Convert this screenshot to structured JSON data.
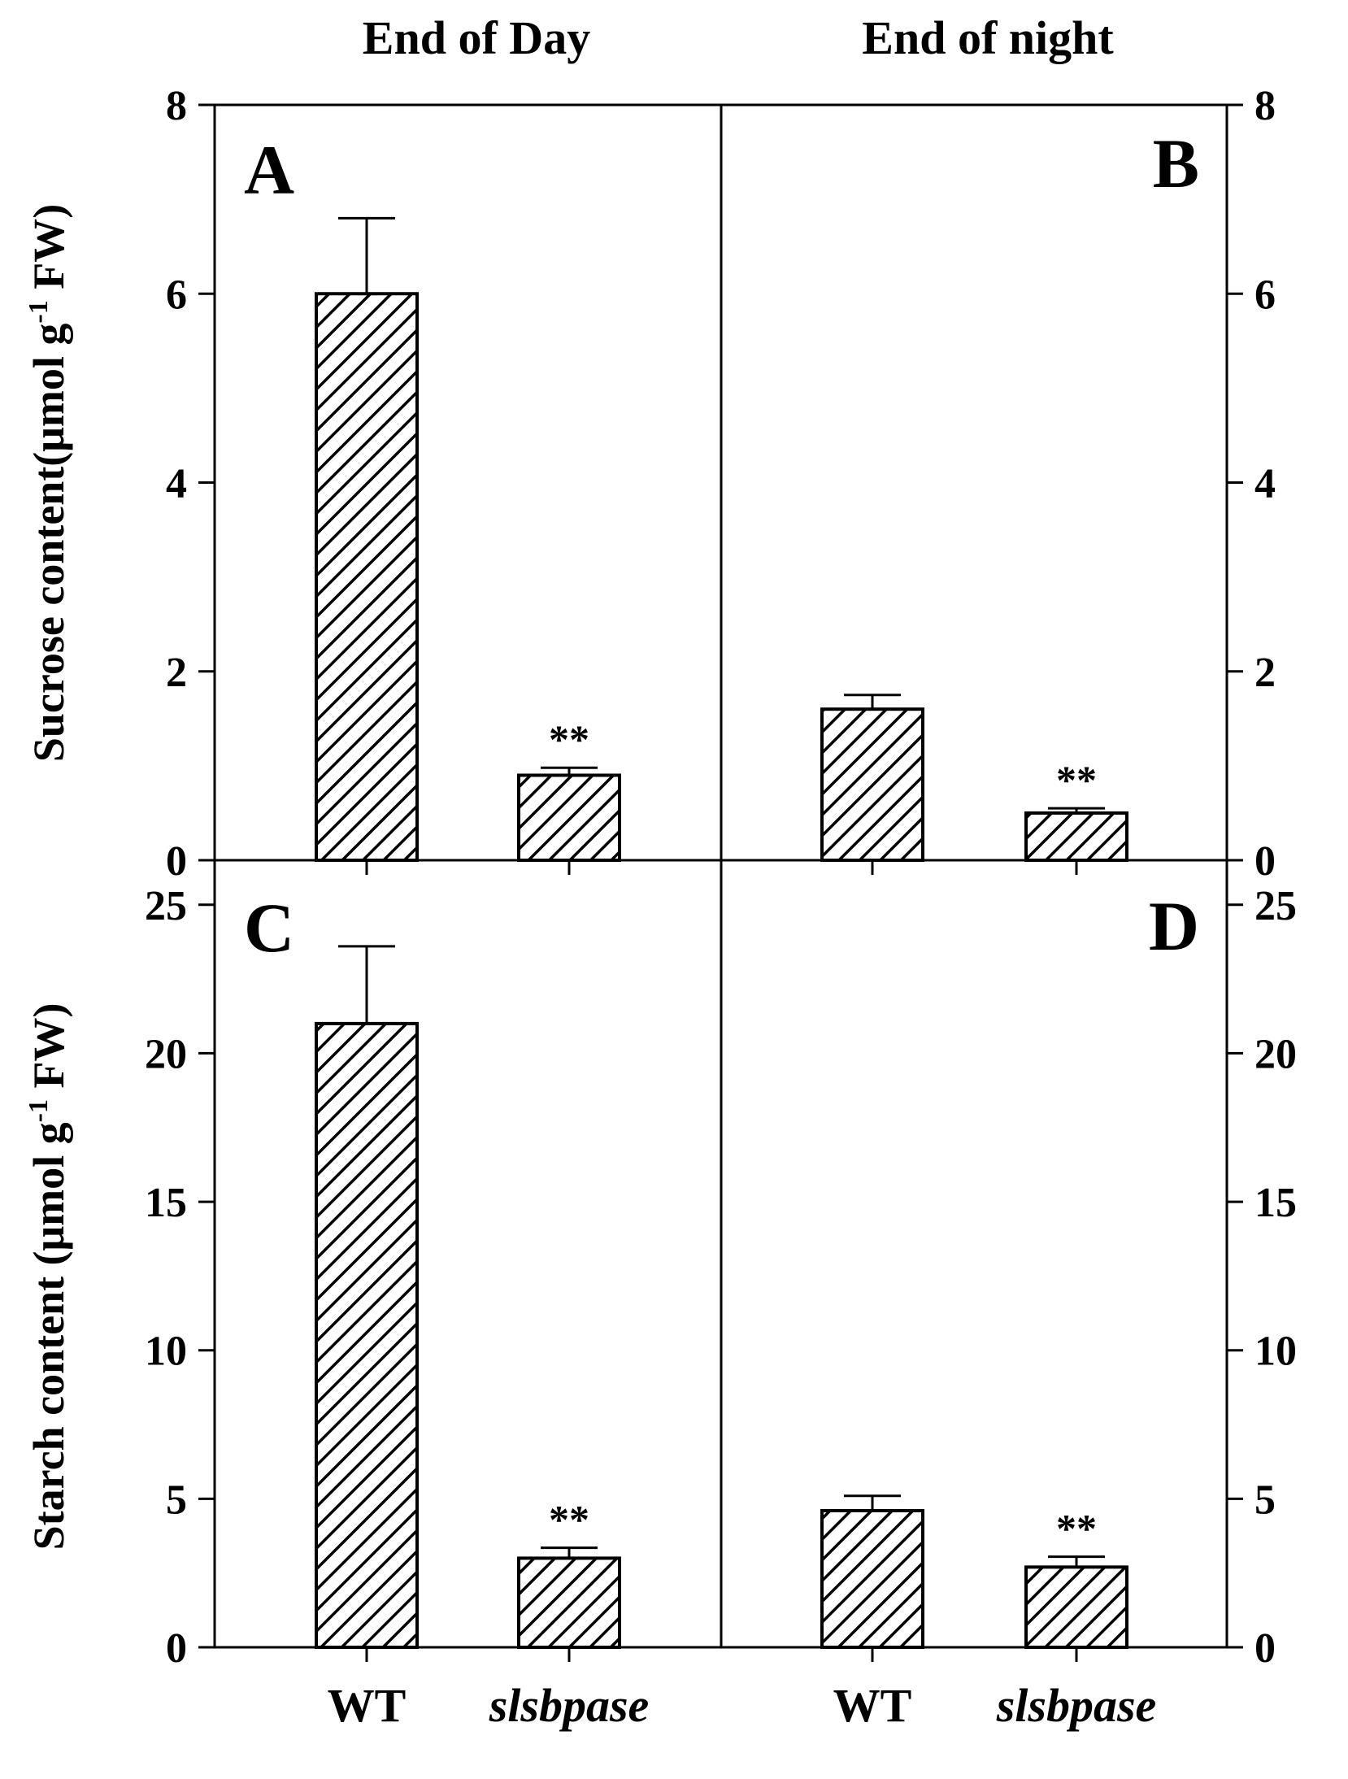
{
  "header": {
    "left_title": "End of Day",
    "right_title": "End of night"
  },
  "axes": {
    "top_ylabel": "Sucrose content(μmol g",
    "top_ylabel_sup": "-1",
    "top_ylabel_end": " FW)",
    "bottom_ylabel": "Starch content (μmol g",
    "bottom_ylabel_sup": "-1",
    "bottom_ylabel_end": " FW)",
    "top_ticks": [
      "0",
      "2",
      "4",
      "6",
      "8"
    ],
    "bottom_ticks": [
      "0",
      "5",
      "10",
      "15",
      "20",
      "25"
    ]
  },
  "xlabels": {
    "wt": "WT",
    "mutant": "slsbpase"
  },
  "significance": "**",
  "colors": {
    "bar_stroke": "#000000",
    "hatch": "#000000",
    "background": "#ffffff"
  },
  "chart_data": [
    {
      "panel": "A",
      "type": "bar",
      "title": "End of Day",
      "categories": [
        "WT",
        "slsbpase"
      ],
      "values": [
        6.0,
        0.9
      ],
      "errors": [
        0.8,
        0.08
      ],
      "significance": [
        "",
        "**"
      ],
      "ylabel": "Sucrose content(μmol g-1 FW)",
      "ylim": [
        0,
        8
      ],
      "yticks": [
        0,
        2,
        4,
        6,
        8
      ]
    },
    {
      "panel": "B",
      "type": "bar",
      "title": "End of night",
      "categories": [
        "WT",
        "slsbpase"
      ],
      "values": [
        1.6,
        0.5
      ],
      "errors": [
        0.15,
        0.05
      ],
      "significance": [
        "",
        "**"
      ],
      "ylim": [
        0,
        8
      ],
      "yticks": [
        0,
        2,
        4,
        6,
        8
      ]
    },
    {
      "panel": "C",
      "type": "bar",
      "categories": [
        "WT",
        "slsbpase"
      ],
      "values": [
        21.0,
        3.0
      ],
      "errors": [
        2.6,
        0.35
      ],
      "significance": [
        "",
        "**"
      ],
      "ylabel": "Starch content (μmol g-1 FW)",
      "ylim": [
        0,
        26.5
      ],
      "yticks": [
        0,
        5,
        10,
        15,
        20,
        25
      ]
    },
    {
      "panel": "D",
      "type": "bar",
      "categories": [
        "WT",
        "slsbpase"
      ],
      "values": [
        4.6,
        2.7
      ],
      "errors": [
        0.5,
        0.35
      ],
      "significance": [
        "",
        "**"
      ],
      "ylim": [
        0,
        26.5
      ],
      "yticks": [
        0,
        5,
        10,
        15,
        20,
        25
      ]
    }
  ]
}
